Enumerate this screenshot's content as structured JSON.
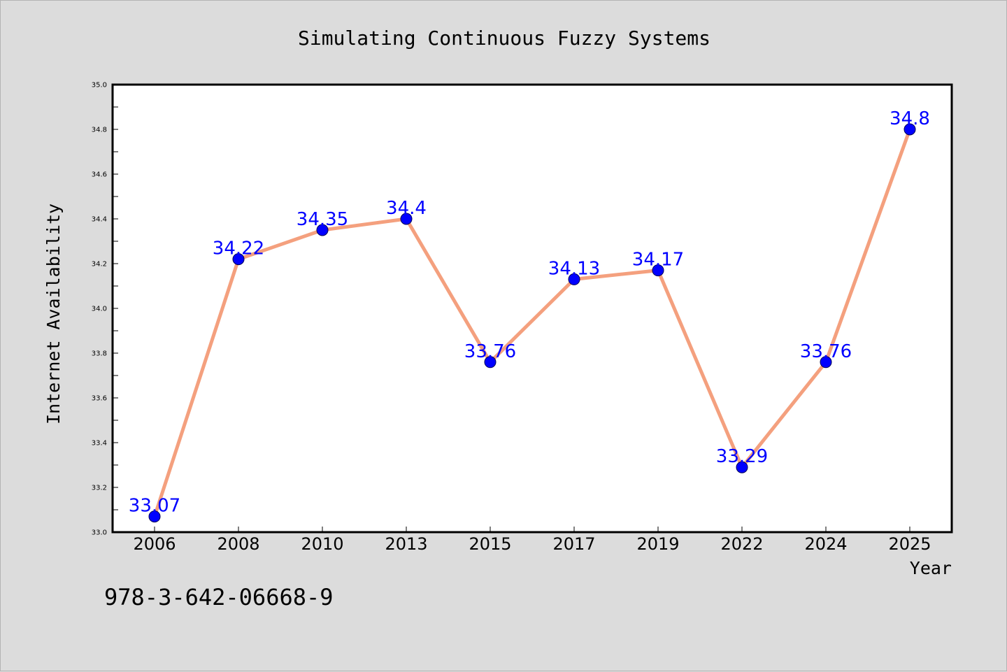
{
  "page": {
    "footer_text": "978-3-642-06668-9"
  },
  "colors": {
    "background": "#dcdcdc",
    "plot_background": "#ffffff",
    "line": "#f4a07e",
    "marker": "#0000ff",
    "data_label": "#0000ff",
    "axis": "#000000"
  },
  "chart_data": {
    "type": "line",
    "title": "Simulating Continuous Fuzzy Systems",
    "xlabel": "Year",
    "ylabel": "Internet Availability",
    "categories": [
      "2006",
      "2008",
      "2010",
      "2013",
      "2015",
      "2017",
      "2019",
      "2022",
      "2024",
      "2025"
    ],
    "series": [
      {
        "values": [
          33.07,
          34.22,
          34.35,
          34.4,
          33.76,
          34.13,
          34.17,
          33.29,
          33.76,
          34.8
        ],
        "labels": [
          "33.07",
          "34.22",
          "34.35",
          "34.4",
          "33.76",
          "34.13",
          "34.17",
          "33.29",
          "33.76",
          "34.8"
        ]
      }
    ],
    "ylim": [
      33.0,
      35.0
    ],
    "yticks": [
      "33.0",
      "33.2",
      "33.4",
      "33.6",
      "33.8",
      "34.0",
      "34.2",
      "34.4",
      "34.6",
      "34.8",
      "35.0"
    ],
    "grid": false,
    "legend": "none"
  }
}
